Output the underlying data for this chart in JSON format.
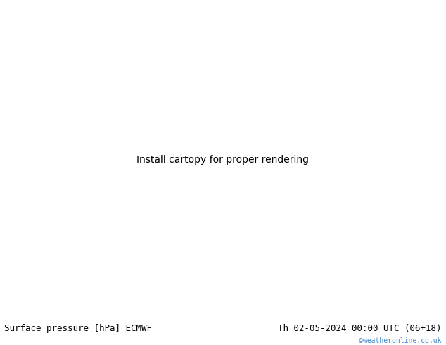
{
  "title_left": "Surface pressure [hPa] ECMWF",
  "title_right": "Th 02-05-2024 00:00 UTC (06+18)",
  "title_right2": "©weatheronline.co.uk",
  "bg_color": "#c8d8e8",
  "land_color": "#90c878",
  "border_color": "#888888",
  "ocean_color": "#c8d8e8",
  "fig_width": 6.34,
  "fig_height": 4.9,
  "dpi": 100,
  "font_family": "monospace",
  "title_fontsize": 9,
  "watermark_color": "#4488cc",
  "lon_min": -90,
  "lon_max": -20,
  "lat_min": -60,
  "lat_max": 15
}
